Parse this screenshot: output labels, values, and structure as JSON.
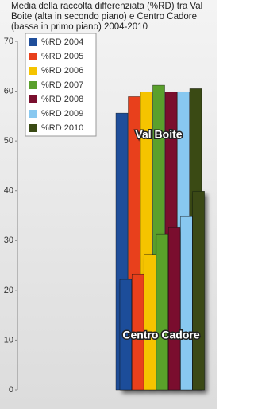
{
  "chart_data": {
    "type": "bar",
    "title": "Media della raccolta differenziata (%RD) tra Val Boite (alta in secondo piano) e Centro Cadore (bassa in primo piano) 2004-2010",
    "categories": [
      "Val Boite",
      "Centro Cadore"
    ],
    "series": [
      {
        "name": "%RD 2004",
        "color": "#1f4e9a",
        "values": [
          55.6,
          22.2
        ]
      },
      {
        "name": "%RD 2005",
        "color": "#e8401c",
        "values": [
          58.9,
          23.3
        ]
      },
      {
        "name": "%RD 2006",
        "color": "#f5c400",
        "values": [
          59.9,
          27.2
        ]
      },
      {
        "name": "%RD 2007",
        "color": "#5aa02c",
        "values": [
          61.2,
          31.3
        ]
      },
      {
        "name": "%RD 2008",
        "color": "#7a0f2e",
        "values": [
          59.8,
          32.7
        ]
      },
      {
        "name": "%RD 2009",
        "color": "#88c8f0",
        "values": [
          59.9,
          34.8
        ]
      },
      {
        "name": "%RD 2010",
        "color": "#3a4a14",
        "values": [
          60.5,
          39.9
        ]
      }
    ],
    "ylim": [
      0,
      70
    ],
    "yticks": [
      0,
      10,
      20,
      30,
      40,
      50,
      60,
      70
    ],
    "grid": false
  }
}
